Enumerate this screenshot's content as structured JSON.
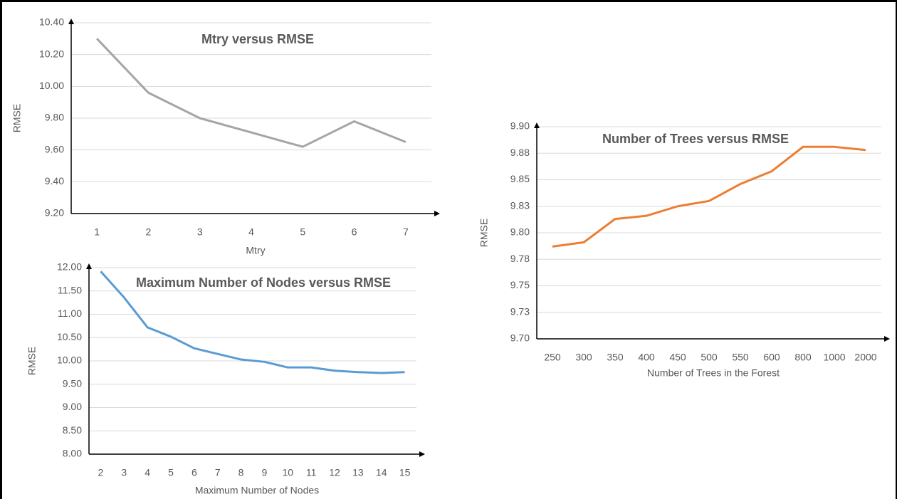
{
  "chart_data": [
    {
      "type": "line",
      "title": "Mtry versus RMSE",
      "x_label": "Mtry",
      "y_label": "RMSE",
      "categories": [
        "1",
        "2",
        "3",
        "4",
        "5",
        "6",
        "7"
      ],
      "values": [
        10.3,
        9.96,
        9.8,
        9.71,
        9.62,
        9.78,
        9.65
      ],
      "color": "#a5a5a5",
      "ylim": [
        9.2,
        10.4
      ],
      "yticks": [
        {
          "value": 9.2,
          "label": "9.20"
        },
        {
          "value": 9.4,
          "label": "9.40"
        },
        {
          "value": 9.6,
          "label": "9.60"
        },
        {
          "value": 9.8,
          "label": "9.80"
        },
        {
          "value": 10,
          "label": "10.00"
        },
        {
          "value": 10.2,
          "label": "10.20"
        },
        {
          "value": 10.4,
          "label": "10.40"
        }
      ],
      "grid": true
    },
    {
      "type": "line",
      "title": "Maximum Number of Nodes versus RMSE",
      "x_label": "Maximum Number of Nodes",
      "y_label": "RMSE",
      "categories": [
        "2",
        "3",
        "4",
        "5",
        "6",
        "7",
        "8",
        "9",
        "10",
        "11",
        "12",
        "13",
        "14",
        "15"
      ],
      "values": [
        11.92,
        11.36,
        10.72,
        10.52,
        10.27,
        10.15,
        10.03,
        9.98,
        9.86,
        9.86,
        9.79,
        9.76,
        9.74,
        9.76
      ],
      "color": "#5b9bd5",
      "ylim": [
        8,
        12
      ],
      "yticks": [
        {
          "value": 8,
          "label": "8.00"
        },
        {
          "value": 8.5,
          "label": "8.50"
        },
        {
          "value": 9,
          "label": "9.00"
        },
        {
          "value": 9.5,
          "label": "9.50"
        },
        {
          "value": 10,
          "label": "10.00"
        },
        {
          "value": 10.5,
          "label": "10.50"
        },
        {
          "value": 11,
          "label": "11.00"
        },
        {
          "value": 11.5,
          "label": "11.50"
        },
        {
          "value": 12,
          "label": "12.00"
        }
      ],
      "grid": true
    },
    {
      "type": "line",
      "title": "Number of Trees versus RMSE",
      "x_label": "Number of Trees in the Forest",
      "y_label": "RMSE",
      "categories": [
        "250",
        "300",
        "350",
        "400",
        "450",
        "500",
        "550",
        "600",
        "800",
        "1000",
        "2000"
      ],
      "values": [
        9.787,
        9.791,
        9.813,
        9.816,
        9.825,
        9.83,
        9.846,
        9.858,
        9.881,
        9.881,
        9.878
      ],
      "color": "#ed7d31",
      "ylim": [
        9.7,
        9.9
      ],
      "yticks": [
        {
          "value": 9.7,
          "label": "9.70"
        },
        {
          "value": 9.725,
          "label": "9.73"
        },
        {
          "value": 9.75,
          "label": "9.75"
        },
        {
          "value": 9.775,
          "label": "9.78"
        },
        {
          "value": 9.8,
          "label": "9.80"
        },
        {
          "value": 9.825,
          "label": "9.83"
        },
        {
          "value": 9.85,
          "label": "9.85"
        },
        {
          "value": 9.875,
          "label": "9.88"
        },
        {
          "value": 9.9,
          "label": "9.90"
        }
      ],
      "grid": true
    }
  ]
}
